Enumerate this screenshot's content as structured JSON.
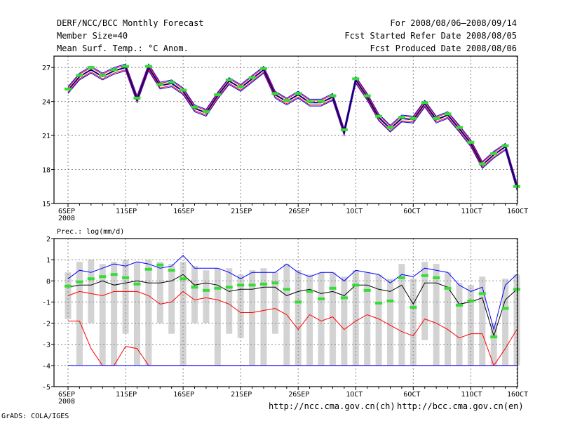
{
  "header": {
    "title": "DERF/NCC/BCC Monthly Forecast",
    "member": "Member Size=40",
    "variable": "Mean Surf. Temp.: °C Anom.",
    "period": "For 2008/08/06—2008/09/14",
    "started": "Fcst Started Refer Date 2008/08/05",
    "produced": "Fcst Produced Date 2008/08/06"
  },
  "footer": {
    "grads": "GrADS: COLA/IGES",
    "url_ch": "http://ncc.cma.gov.cn(ch)",
    "url_en": "http://bcc.cma.gov.cn(en)"
  },
  "colors": {
    "main": "#000080",
    "upper": "#0000ff",
    "lower": "#ff0000",
    "obs": "#33dd33",
    "box": "#d3d3d3"
  },
  "chart_data": [
    {
      "type": "line",
      "title": "Mean Surf. Temp.: °C Anom.",
      "ylim": [
        15,
        28
      ],
      "yticks": [
        "15",
        "18",
        "21",
        "24",
        "27"
      ],
      "xticks": [
        {
          "day": 0,
          "label": "6SEP",
          "sub": "2008"
        },
        {
          "day": 5,
          "label": "11SEP"
        },
        {
          "day": 10,
          "label": "16SEP"
        },
        {
          "day": 15,
          "label": "21SEP"
        },
        {
          "day": 20,
          "label": "26SEP"
        },
        {
          "day": 25,
          "label": "1OCT"
        },
        {
          "day": 30,
          "label": "6OCT"
        },
        {
          "day": 35,
          "label": "11OCT"
        },
        {
          "day": 40,
          "label": "16OCT"
        }
      ],
      "series": [
        {
          "name": "mean",
          "values": [
            25.0,
            26.2,
            26.8,
            26.2,
            26.7,
            27.0,
            24.2,
            27.0,
            25.4,
            25.6,
            24.9,
            23.4,
            23.0,
            24.5,
            25.8,
            25.2,
            26.0,
            26.8,
            24.6,
            24.0,
            24.6,
            23.9,
            23.9,
            24.4,
            21.3,
            25.9,
            24.4,
            22.6,
            21.6,
            22.5,
            22.4,
            23.8,
            22.4,
            22.8,
            21.6,
            20.3,
            18.4,
            19.3,
            20.0,
            16.5
          ]
        },
        {
          "name": "upper",
          "values": [
            25.2,
            26.4,
            27.0,
            26.4,
            26.9,
            27.2,
            24.4,
            27.2,
            25.6,
            25.8,
            25.1,
            23.6,
            23.2,
            24.7,
            26.0,
            25.4,
            26.2,
            27.0,
            24.8,
            24.2,
            24.8,
            24.1,
            24.1,
            24.6,
            21.5,
            26.1,
            24.6,
            22.8,
            21.8,
            22.7,
            22.6,
            24.0,
            22.6,
            23.0,
            21.8,
            20.5,
            18.6,
            19.5,
            20.2,
            16.7
          ]
        },
        {
          "name": "lower",
          "values": [
            24.8,
            26.0,
            26.6,
            26.0,
            26.5,
            26.8,
            24.0,
            26.8,
            25.2,
            25.4,
            24.7,
            23.2,
            22.8,
            24.3,
            25.6,
            25.0,
            25.8,
            26.6,
            24.4,
            23.8,
            24.4,
            23.7,
            23.7,
            24.2,
            21.1,
            25.7,
            24.2,
            22.4,
            21.4,
            22.3,
            22.2,
            23.6,
            22.2,
            22.6,
            21.4,
            20.1,
            18.2,
            19.1,
            19.8,
            16.3
          ]
        },
        {
          "name": "outer_upper",
          "values": [
            25.3,
            26.5,
            27.1,
            26.5,
            27.0,
            27.3,
            24.5,
            27.3,
            25.7,
            25.9,
            25.2,
            23.7,
            23.3,
            24.8,
            26.1,
            25.5,
            26.3,
            27.1,
            24.9,
            24.3,
            24.9,
            24.2,
            24.2,
            24.7,
            21.6,
            26.2,
            24.7,
            22.9,
            21.9,
            22.8,
            22.7,
            24.1,
            22.7,
            23.1,
            21.9,
            20.6,
            18.7,
            19.6,
            20.3,
            16.8
          ]
        },
        {
          "name": "outer_lower",
          "values": [
            24.7,
            25.9,
            26.5,
            25.9,
            26.4,
            26.7,
            23.9,
            26.7,
            25.1,
            25.3,
            24.6,
            23.1,
            22.7,
            24.2,
            25.5,
            24.9,
            25.7,
            26.5,
            24.3,
            23.7,
            24.3,
            23.6,
            23.6,
            24.1,
            21.0,
            25.6,
            24.1,
            22.3,
            21.3,
            22.2,
            22.1,
            23.5,
            22.1,
            22.5,
            21.3,
            20.0,
            18.1,
            19.0,
            19.7,
            16.2
          ]
        },
        {
          "name": "observed",
          "values": [
            25.1,
            26.3,
            27.0,
            26.3,
            26.8,
            27.1,
            24.3,
            27.1,
            25.5,
            25.7,
            25.0,
            23.5,
            23.1,
            24.6,
            25.9,
            25.3,
            26.1,
            26.9,
            24.7,
            24.1,
            24.7,
            24.0,
            24.0,
            24.5,
            21.5,
            26.0,
            24.5,
            22.7,
            21.7,
            22.6,
            22.5,
            23.9,
            22.5,
            22.9,
            21.7,
            20.4,
            18.5,
            19.4,
            20.1,
            16.5
          ]
        }
      ]
    },
    {
      "type": "line",
      "title": "Prec.: log(mm/d)",
      "ylim": [
        -5,
        2
      ],
      "yticks": [
        "-5",
        "-4",
        "-3",
        "-2",
        "-1",
        "0",
        "1",
        "2"
      ],
      "xticks": [
        {
          "day": 0,
          "label": "6SEP",
          "sub": "2008"
        },
        {
          "day": 5,
          "label": "11SEP"
        },
        {
          "day": 10,
          "label": "16SEP"
        },
        {
          "day": 15,
          "label": "21SEP"
        },
        {
          "day": 20,
          "label": "26SEP"
        },
        {
          "day": 25,
          "label": "1OCT"
        },
        {
          "day": 30,
          "label": "6OCT"
        },
        {
          "day": 35,
          "label": "11OCT"
        },
        {
          "day": 40,
          "label": "16OCT"
        }
      ],
      "series": [
        {
          "name": "mean",
          "values": [
            -0.3,
            -0.2,
            -0.2,
            0.0,
            -0.2,
            -0.1,
            0.0,
            -0.1,
            -0.1,
            0.0,
            0.3,
            -0.2,
            -0.1,
            -0.2,
            -0.5,
            -0.4,
            -0.4,
            -0.3,
            -0.3,
            -0.7,
            -0.5,
            -0.4,
            -0.6,
            -0.5,
            -0.7,
            -0.2,
            -0.2,
            -0.4,
            -0.5,
            -0.2,
            -1.1,
            -0.1,
            -0.1,
            -0.3,
            -1.1,
            -1.0,
            -0.8,
            -2.6,
            -0.9,
            -0.4
          ]
        },
        {
          "name": "upper",
          "values": [
            0.1,
            0.5,
            0.4,
            0.6,
            0.8,
            0.7,
            0.9,
            0.8,
            0.6,
            0.7,
            1.2,
            0.6,
            0.6,
            0.6,
            0.4,
            0.1,
            0.4,
            0.4,
            0.4,
            0.8,
            0.4,
            0.2,
            0.4,
            0.4,
            0.0,
            0.5,
            0.4,
            0.3,
            -0.1,
            0.3,
            0.2,
            0.6,
            0.5,
            0.4,
            -0.2,
            -0.5,
            -0.3,
            -2.3,
            -0.2,
            0.3
          ]
        },
        {
          "name": "lower",
          "values": [
            -0.7,
            -0.5,
            -0.6,
            -0.7,
            -0.5,
            -0.5,
            -0.5,
            -0.7,
            -1.1,
            -1.0,
            -0.5,
            -0.9,
            -0.8,
            -0.9,
            -1.1,
            -1.5,
            -1.5,
            -1.4,
            -1.3,
            -1.6,
            -2.3,
            -1.6,
            -1.9,
            -1.7,
            -2.3,
            -1.9,
            -1.6,
            -1.8,
            -2.1,
            -2.4,
            -2.6,
            -1.8,
            -2.0,
            -2.3,
            -2.7,
            -2.5,
            -2.5,
            -4.0,
            -3.2,
            -2.3
          ]
        },
        {
          "name": "min",
          "values": [
            -1.9,
            -1.9,
            -3.2,
            -4.0,
            -4.0,
            -3.1,
            -3.2,
            -4.0,
            -4.0,
            -4.0,
            -4.0,
            -4.0,
            -4.0,
            -4.0,
            -4.0,
            -4.0,
            -4.0,
            -4.0,
            -4.0,
            -4.0,
            -4.0,
            -4.0,
            -4.0,
            -4.0,
            -4.0,
            -4.0,
            -4.0,
            -4.0,
            -4.0,
            -4.0,
            -4.0,
            -4.0,
            -4.0,
            -4.0,
            -4.0,
            -4.0,
            -4.0,
            -4.0,
            -4.0,
            -4.0
          ]
        },
        {
          "name": "observed",
          "values": [
            -0.25,
            -0.05,
            0.1,
            0.2,
            0.3,
            0.15,
            -0.15,
            0.55,
            0.75,
            0.5,
            0.1,
            -0.3,
            -0.45,
            -0.35,
            -0.3,
            -0.2,
            -0.2,
            -0.15,
            -0.1,
            -0.4,
            -1.0,
            -0.5,
            -0.85,
            -0.35,
            -0.8,
            -0.2,
            -0.45,
            -1.05,
            -0.95,
            0.15,
            -1.25,
            0.25,
            0.15,
            -0.35,
            -1.15,
            -0.95,
            -0.6,
            -2.65,
            -1.3,
            -0.4
          ]
        },
        {
          "name": "box_top",
          "values": [
            0.4,
            0.9,
            1.0,
            0.8,
            0.9,
            1.0,
            0.9,
            1.0,
            0.9,
            0.8,
            0.9,
            0.7,
            0.5,
            0.6,
            0.6,
            0.3,
            0.5,
            0.6,
            0.4,
            0.8,
            0.5,
            0.3,
            0.4,
            0.4,
            0.2,
            0.5,
            0.4,
            0.3,
            0.1,
            0.8,
            0.1,
            0.9,
            0.8,
            0.4,
            -0.1,
            -0.2,
            0.2,
            -2.0,
            0.1,
            0.3
          ]
        },
        {
          "name": "box_bottom",
          "values": [
            -1.8,
            -4.0,
            -2.0,
            -4.0,
            -4.0,
            -2.5,
            -4.0,
            -4.0,
            -2.0,
            -2.5,
            -4.0,
            -2.0,
            -2.0,
            -4.0,
            -2.5,
            -2.7,
            -4.0,
            -4.0,
            -2.5,
            -4.0,
            -4.0,
            -4.0,
            -4.0,
            -4.0,
            -4.0,
            -4.0,
            -4.0,
            -4.0,
            -4.0,
            -4.0,
            -4.0,
            -2.8,
            -4.0,
            -4.0,
            -4.0,
            -4.0,
            -4.0,
            -4.0,
            -4.0,
            -4.0
          ]
        }
      ]
    }
  ]
}
